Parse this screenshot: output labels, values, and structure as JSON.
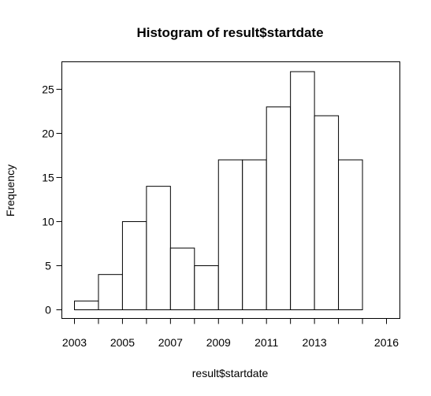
{
  "chart_data": {
    "type": "bar",
    "title": "Histogram of result$startdate",
    "xlabel": "result$startdate",
    "ylabel": "Frequency",
    "bins": [
      {
        "from": 2003,
        "to": 2004,
        "count": 1
      },
      {
        "from": 2004,
        "to": 2005,
        "count": 4
      },
      {
        "from": 2005,
        "to": 2006,
        "count": 10
      },
      {
        "from": 2006,
        "to": 2007,
        "count": 14
      },
      {
        "from": 2007,
        "to": 2008,
        "count": 7
      },
      {
        "from": 2008,
        "to": 2009,
        "count": 5
      },
      {
        "from": 2009,
        "to": 2010,
        "count": 17
      },
      {
        "from": 2010,
        "to": 2011,
        "count": 17
      },
      {
        "from": 2011,
        "to": 2012,
        "count": 23
      },
      {
        "from": 2012,
        "to": 2013,
        "count": 27
      },
      {
        "from": 2013,
        "to": 2014,
        "count": 22
      },
      {
        "from": 2014,
        "to": 2015,
        "count": 17
      }
    ],
    "xlim": [
      2003,
      2016
    ],
    "ylim": [
      0,
      27
    ],
    "x_ticks": [
      2003,
      2004,
      2005,
      2006,
      2007,
      2008,
      2009,
      2010,
      2011,
      2012,
      2013,
      2014,
      2015,
      2016
    ],
    "x_tick_labels": [
      "2003",
      "2005",
      "2007",
      "2009",
      "2011",
      "2013",
      "2016"
    ],
    "y_ticks": [
      0,
      5,
      10,
      15,
      20,
      25
    ],
    "y_tick_labels": [
      "0",
      "5",
      "10",
      "15",
      "20",
      "25"
    ],
    "grid": false,
    "frame": true
  }
}
